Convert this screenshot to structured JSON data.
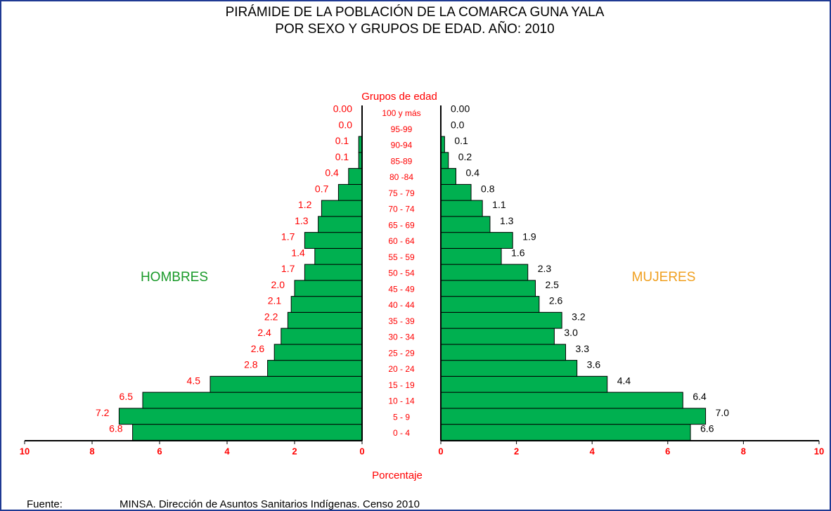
{
  "chart_data": {
    "type": "pyramid",
    "title": "PIRÁMIDE DE LA POBLACIÓN DE LA COMARCA GUNA YALA",
    "subtitle": "POR SEXO Y GRUPOS DE EDAD. AÑO:  2010",
    "category_title": "Grupos de edad",
    "xlabel": "Porcentaje",
    "source_label": "Fuente:",
    "source": "MINSA. Dirección de Asuntos Sanitarios Indígenas. Censo 2010",
    "categories": [
      "0 - 4",
      "5 - 9",
      "10 - 14",
      "15 - 19",
      "20 - 24",
      "25 - 29",
      "30 - 34",
      "35 - 39",
      "40 - 44",
      "45 - 49",
      "50 - 54",
      "55 - 59",
      "60 - 64",
      "65 - 69",
      "70 - 74",
      "75 - 79",
      "80 -84",
      "85-89",
      "90-94",
      "95-99",
      "100 y más"
    ],
    "series": [
      {
        "name": "HOMBRES",
        "color": "#00b050",
        "name_color": "#1a9a2a",
        "label_color": "#ff0000",
        "values": [
          6.8,
          7.2,
          6.5,
          4.5,
          2.8,
          2.6,
          2.4,
          2.2,
          2.1,
          2.0,
          1.7,
          1.4,
          1.7,
          1.3,
          1.2,
          0.7,
          0.4,
          0.1,
          0.1,
          0.0,
          0.0
        ],
        "value_labels": [
          "6.8",
          "7.2",
          "6.5",
          "4.5",
          "2.8",
          "2.6",
          "2.4",
          "2.2",
          "2.1",
          "2.0",
          "1.7",
          "1.4",
          "1.7",
          "1.3",
          "1.2",
          "0.7",
          "0.4",
          "0.1",
          "0.1",
          "0.0",
          "0.00"
        ]
      },
      {
        "name": "MUJERES",
        "color": "#00b050",
        "name_color": "#f0a020",
        "label_color": "#000000",
        "values": [
          6.6,
          7.0,
          6.4,
          4.4,
          3.6,
          3.3,
          3.0,
          3.2,
          2.6,
          2.5,
          2.3,
          1.6,
          1.9,
          1.3,
          1.1,
          0.8,
          0.4,
          0.2,
          0.1,
          0.0,
          0.0
        ],
        "value_labels": [
          "6.6",
          "7.0",
          "6.4",
          "4.4",
          "3.6",
          "3.3",
          "3.0",
          "3.2",
          "2.6",
          "2.5",
          "2.3",
          "1.6",
          "1.9",
          "1.3",
          "1.1",
          "0.8",
          "0.4",
          "0.2",
          "0.1",
          "0.0",
          "0.00"
        ]
      }
    ],
    "xlim": [
      0,
      10
    ],
    "xticks": [
      0,
      2,
      4,
      6,
      8,
      10
    ]
  }
}
